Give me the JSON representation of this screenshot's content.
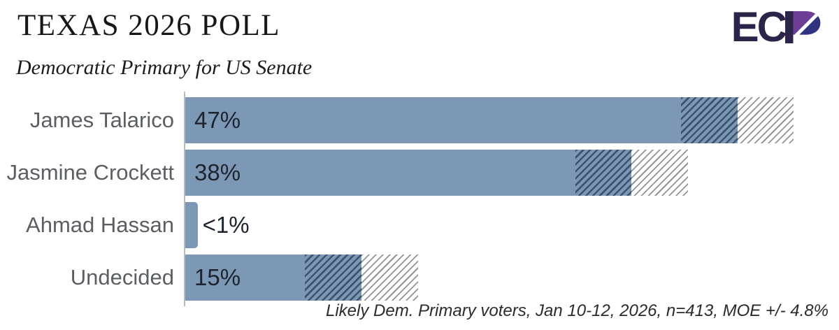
{
  "header": {
    "title": "TEXAS 2026 POLL",
    "subtitle": "Democratic Primary for US Senate"
  },
  "logo": {
    "ec_text": "EC",
    "p_letter": "P",
    "dark_color": "#2d2449",
    "purple_color": "#6e3e97",
    "blue_color": "#303380"
  },
  "chart_data": {
    "type": "bar",
    "orientation": "horizontal",
    "title": "TEXAS 2026 POLL",
    "subtitle": "Democratic Primary for US Senate",
    "categories": [
      "James Talarico",
      "Jasmine Crockett",
      "Ahmad Hassan",
      "Undecided"
    ],
    "values": [
      47,
      38,
      0.5,
      15
    ],
    "value_labels": [
      "47%",
      "38%",
      "<1%",
      "15%"
    ],
    "moe_pct": 4.8,
    "moe_hatch_shown": [
      true,
      true,
      false,
      true
    ],
    "value_label_inside": [
      true,
      true,
      false,
      true
    ],
    "xlim": [
      0,
      52
    ],
    "grid": false,
    "legend": "none",
    "bar_color": "#7d98b5",
    "moe_inner_hatch_color": "#3c546e",
    "moe_outer_hatch_color": "#919498",
    "sample_note": "Likely Dem. Primary voters, Jan 10-12, 2026, n=413, MOE +/- 4.8%"
  }
}
